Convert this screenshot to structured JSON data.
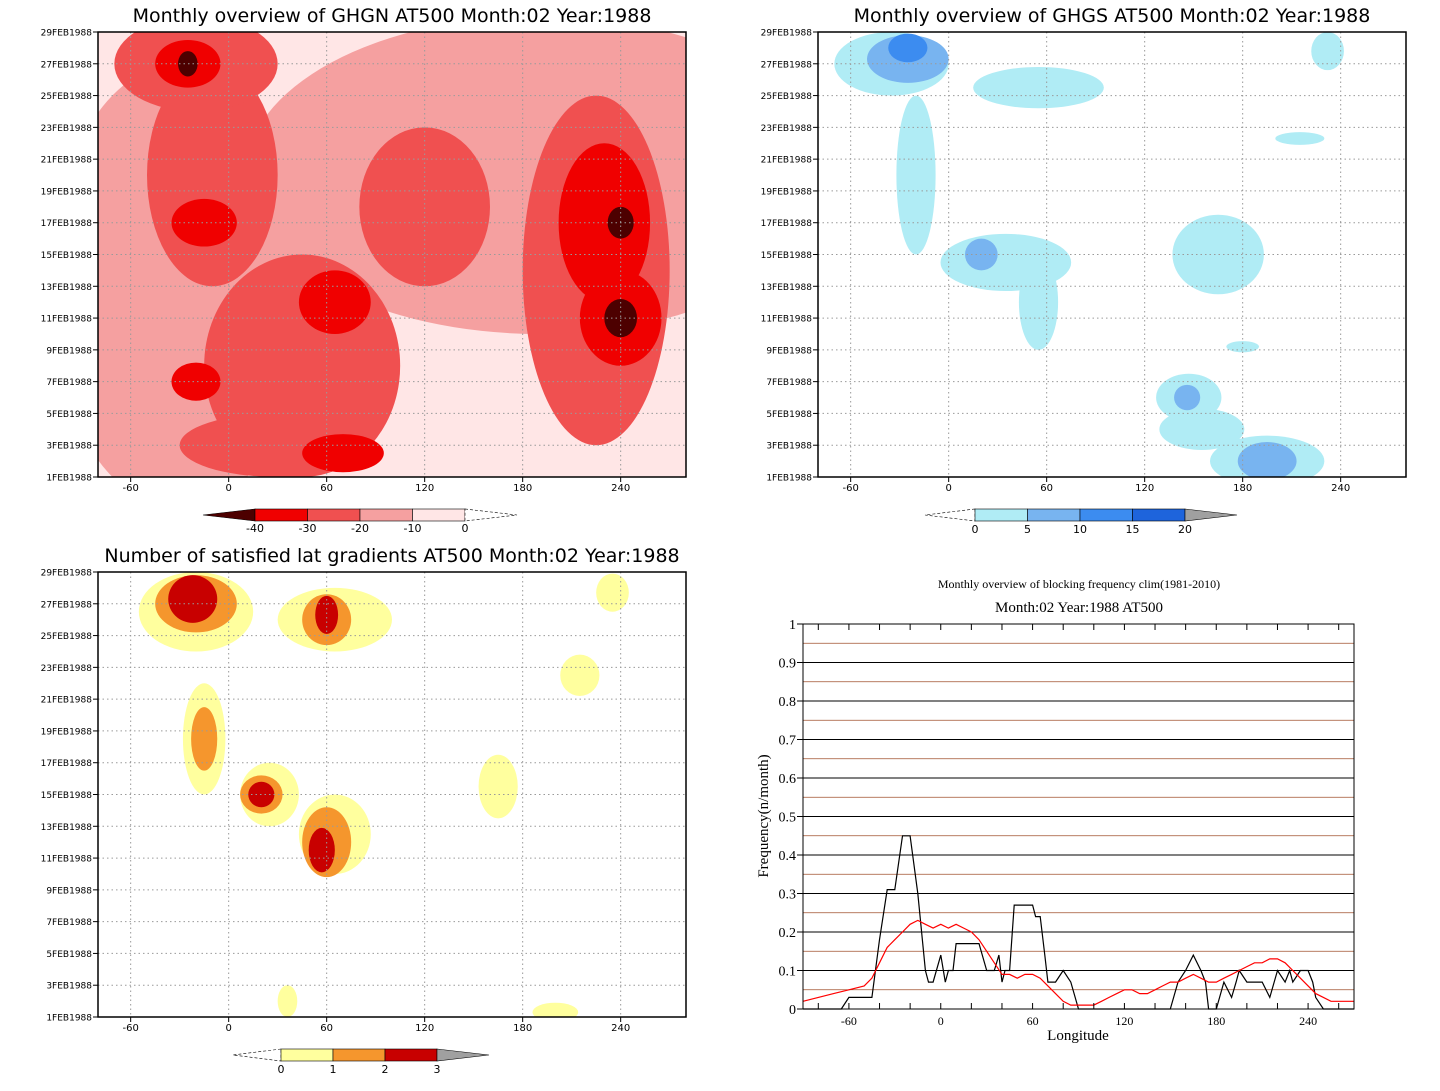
{
  "chart_data": [
    {
      "type": "heatmap",
      "title": "Monthly overview of GHGN AT500 Month:02 Year:1988",
      "x_ticks": [
        "-60",
        "0",
        "60",
        "120",
        "180",
        "240"
      ],
      "y_ticks": [
        "1FEB1988",
        "3FEB1988",
        "5FEB1988",
        "7FEB1988",
        "9FEB1988",
        "11FEB1988",
        "13FEB1988",
        "15FEB1988",
        "17FEB1988",
        "19FEB1988",
        "21FEB1988",
        "23FEB1988",
        "25FEB1988",
        "27FEB1988",
        "29FEB1988"
      ],
      "xlim": [
        -80,
        280
      ],
      "ylim": [
        1,
        29
      ],
      "colorbar": {
        "labels": [
          "-40",
          "-30",
          "-20",
          "-10",
          "0"
        ],
        "colors": [
          "#4d0000",
          "#f00000",
          "#f05050",
          "#f5a0a0",
          "#ffe6e6"
        ]
      },
      "grid": true,
      "blobs": [
        {
          "level": 1,
          "lon": 190,
          "day": 20,
          "rx": 180,
          "ry": 10
        },
        {
          "level": 1,
          "lon": -30,
          "day": 13,
          "rx": 80,
          "ry": 14
        },
        {
          "level": 2,
          "lon": 225,
          "day": 14,
          "rx": 45,
          "ry": 11
        },
        {
          "level": 2,
          "lon": 45,
          "day": 8,
          "rx": 60,
          "ry": 7
        },
        {
          "level": 2,
          "lon": -10,
          "day": 20,
          "rx": 40,
          "ry": 7
        },
        {
          "level": 2,
          "lon": -20,
          "day": 27,
          "rx": 50,
          "ry": 3
        },
        {
          "level": 2,
          "lon": 120,
          "day": 18,
          "rx": 40,
          "ry": 5
        },
        {
          "level": 2,
          "lon": 30,
          "day": 3,
          "rx": 60,
          "ry": 2
        },
        {
          "level": 3,
          "lon": 230,
          "day": 17,
          "rx": 28,
          "ry": 5
        },
        {
          "level": 3,
          "lon": 240,
          "day": 11,
          "rx": 25,
          "ry": 3
        },
        {
          "level": 3,
          "lon": -25,
          "day": 27,
          "rx": 20,
          "ry": 1.5
        },
        {
          "level": 3,
          "lon": 65,
          "day": 12,
          "rx": 22,
          "ry": 2
        },
        {
          "level": 3,
          "lon": -15,
          "day": 17,
          "rx": 20,
          "ry": 1.5
        },
        {
          "level": 3,
          "lon": -20,
          "day": 7,
          "rx": 15,
          "ry": 1.2
        },
        {
          "level": 3,
          "lon": 70,
          "day": 2.5,
          "rx": 25,
          "ry": 1.2
        },
        {
          "level": 4,
          "lon": 240,
          "day": 17,
          "rx": 8,
          "ry": 1
        },
        {
          "level": 4,
          "lon": 240,
          "day": 11,
          "rx": 10,
          "ry": 1.2
        },
        {
          "level": 4,
          "lon": -25,
          "day": 27,
          "rx": 6,
          "ry": 0.8
        }
      ]
    },
    {
      "type": "heatmap",
      "title": "Monthly overview of GHGS AT500 Month:02 Year:1988",
      "x_ticks": [
        "-60",
        "0",
        "60",
        "120",
        "180",
        "240"
      ],
      "y_ticks": [
        "1FEB1988",
        "3FEB1988",
        "5FEB1988",
        "7FEB1988",
        "9FEB1988",
        "11FEB1988",
        "13FEB1988",
        "15FEB1988",
        "17FEB1988",
        "19FEB1988",
        "21FEB1988",
        "23FEB1988",
        "25FEB1988",
        "27FEB1988",
        "29FEB1988"
      ],
      "xlim": [
        -80,
        280
      ],
      "ylim": [
        1,
        29
      ],
      "colorbar": {
        "labels": [
          "0",
          "5",
          "10",
          "15",
          "20"
        ],
        "colors": [
          "#b0ecf5",
          "#78b4f0",
          "#3c8cf0",
          "#1e64dc",
          "#a0a0a0"
        ]
      },
      "grid": true,
      "blobs": [
        {
          "level": 1,
          "lon": -35,
          "day": 27,
          "rx": 35,
          "ry": 2
        },
        {
          "level": 1,
          "lon": -20,
          "day": 20,
          "rx": 12,
          "ry": 5
        },
        {
          "level": 1,
          "lon": 55,
          "day": 25.5,
          "rx": 40,
          "ry": 1.3
        },
        {
          "level": 1,
          "lon": 35,
          "day": 14.5,
          "rx": 40,
          "ry": 1.8
        },
        {
          "level": 1,
          "lon": 55,
          "day": 12,
          "rx": 12,
          "ry": 3
        },
        {
          "level": 1,
          "lon": 165,
          "day": 15,
          "rx": 28,
          "ry": 2.5
        },
        {
          "level": 1,
          "lon": 147,
          "day": 6,
          "rx": 20,
          "ry": 1.5
        },
        {
          "level": 1,
          "lon": 155,
          "day": 4,
          "rx": 26,
          "ry": 1.3
        },
        {
          "level": 1,
          "lon": 195,
          "day": 2,
          "rx": 35,
          "ry": 1.6
        },
        {
          "level": 1,
          "lon": 232,
          "day": 27.8,
          "rx": 10,
          "ry": 1.2
        },
        {
          "level": 1,
          "lon": 215,
          "day": 22.3,
          "rx": 15,
          "ry": 0.4
        },
        {
          "level": 1,
          "lon": 180,
          "day": 9.2,
          "rx": 10,
          "ry": 0.35
        },
        {
          "level": 2,
          "lon": -25,
          "day": 27.3,
          "rx": 25,
          "ry": 1.5
        },
        {
          "level": 2,
          "lon": 20,
          "day": 15,
          "rx": 10,
          "ry": 1
        },
        {
          "level": 2,
          "lon": 146,
          "day": 6,
          "rx": 8,
          "ry": 0.8
        },
        {
          "level": 2,
          "lon": 195,
          "day": 2,
          "rx": 18,
          "ry": 1.2
        },
        {
          "level": 3,
          "lon": -25,
          "day": 28,
          "rx": 12,
          "ry": 0.9
        }
      ]
    },
    {
      "type": "heatmap",
      "title": "Number of satisfied lat gradients AT500 Month:02 Year:1988",
      "x_ticks": [
        "-60",
        "0",
        "60",
        "120",
        "180",
        "240"
      ],
      "y_ticks": [
        "1FEB1988",
        "3FEB1988",
        "5FEB1988",
        "7FEB1988",
        "9FEB1988",
        "11FEB1988",
        "13FEB1988",
        "15FEB1988",
        "17FEB1988",
        "19FEB1988",
        "21FEB1988",
        "23FEB1988",
        "25FEB1988",
        "27FEB1988",
        "29FEB1988"
      ],
      "xlim": [
        -80,
        280
      ],
      "ylim": [
        1,
        29
      ],
      "colorbar": {
        "labels": [
          "0",
          "1",
          "2",
          "3"
        ],
        "colors": [
          "#ffff9e",
          "#f5962d",
          "#c80000",
          "#a0a0a0"
        ]
      },
      "grid": true,
      "blobs": [
        {
          "level": 1,
          "lon": -20,
          "day": 26.5,
          "rx": 35,
          "ry": 2.5
        },
        {
          "level": 1,
          "lon": -15,
          "day": 18.5,
          "rx": 13,
          "ry": 3.5
        },
        {
          "level": 1,
          "lon": 65,
          "day": 26,
          "rx": 35,
          "ry": 2
        },
        {
          "level": 1,
          "lon": 25,
          "day": 15,
          "rx": 18,
          "ry": 2
        },
        {
          "level": 1,
          "lon": 65,
          "day": 12.5,
          "rx": 22,
          "ry": 2.5
        },
        {
          "level": 1,
          "lon": 165,
          "day": 15.5,
          "rx": 12,
          "ry": 2
        },
        {
          "level": 1,
          "lon": 215,
          "day": 22.5,
          "rx": 12,
          "ry": 1.3
        },
        {
          "level": 1,
          "lon": 235,
          "day": 27.7,
          "rx": 10,
          "ry": 1.2
        },
        {
          "level": 1,
          "lon": 36,
          "day": 2,
          "rx": 6,
          "ry": 1
        },
        {
          "level": 1,
          "lon": 200,
          "day": 1.3,
          "rx": 14,
          "ry": 0.6
        },
        {
          "level": 2,
          "lon": -20,
          "day": 27,
          "rx": 25,
          "ry": 1.8
        },
        {
          "level": 2,
          "lon": -15,
          "day": 18.5,
          "rx": 8,
          "ry": 2
        },
        {
          "level": 2,
          "lon": 60,
          "day": 26,
          "rx": 15,
          "ry": 1.6
        },
        {
          "level": 2,
          "lon": 20,
          "day": 15,
          "rx": 13,
          "ry": 1.2
        },
        {
          "level": 2,
          "lon": 60,
          "day": 12,
          "rx": 15,
          "ry": 2.2
        },
        {
          "level": 3,
          "lon": -22,
          "day": 27.3,
          "rx": 15,
          "ry": 1.5
        },
        {
          "level": 3,
          "lon": 60,
          "day": 26.3,
          "rx": 7,
          "ry": 1.2
        },
        {
          "level": 3,
          "lon": 20,
          "day": 15,
          "rx": 8,
          "ry": 0.8
        },
        {
          "level": 3,
          "lon": 57,
          "day": 11.5,
          "rx": 8,
          "ry": 1.4
        }
      ]
    },
    {
      "type": "line",
      "title": "Monthly overview of blocking frequency clim(1981-2010)",
      "subtitle": "Month:02 Year:1988  AT500",
      "xlabel": "Longitude",
      "ylabel": "Frequency(n/month)",
      "xlim": [
        -90,
        270
      ],
      "ylim": [
        0,
        1
      ],
      "x_ticks": [
        "-60",
        "0",
        "60",
        "120",
        "180",
        "240"
      ],
      "y_ticks": [
        "0",
        "0.1",
        "0.2",
        "0.3",
        "0.4",
        "0.5",
        "0.6",
        "0.7",
        "0.8",
        "0.9",
        "1"
      ],
      "grid": true,
      "series": [
        {
          "color": "#000000",
          "x": [
            -90,
            -65,
            -60,
            -55,
            -45,
            -40,
            -35,
            -30,
            -25,
            -20,
            -15,
            -10,
            -8,
            -5,
            0,
            3,
            5,
            8,
            10,
            15,
            20,
            25,
            30,
            35,
            38,
            40,
            42,
            45,
            48,
            50,
            55,
            60,
            62,
            65,
            68,
            70,
            72,
            75,
            80,
            85,
            90,
            100,
            110,
            120,
            130,
            140,
            150,
            155,
            160,
            165,
            170,
            173,
            175,
            180,
            185,
            190,
            193,
            195,
            200,
            205,
            210,
            215,
            220,
            225,
            228,
            230,
            235,
            240,
            243,
            245,
            250,
            255,
            260,
            270
          ],
          "y": [
            0,
            0,
            0.03,
            0.03,
            0.03,
            0.18,
            0.31,
            0.31,
            0.45,
            0.45,
            0.3,
            0.1,
            0.07,
            0.07,
            0.14,
            0.07,
            0.1,
            0.1,
            0.17,
            0.17,
            0.17,
            0.17,
            0.1,
            0.1,
            0.14,
            0.07,
            0.1,
            0.1,
            0.27,
            0.27,
            0.27,
            0.27,
            0.24,
            0.24,
            0.14,
            0.07,
            0.07,
            0.07,
            0.1,
            0.07,
            0,
            0,
            0,
            0,
            0,
            0,
            0,
            0.07,
            0.1,
            0.14,
            0.1,
            0.07,
            0,
            0,
            0.07,
            0.03,
            0.07,
            0.1,
            0.07,
            0.07,
            0.07,
            0.03,
            0.1,
            0.07,
            0.1,
            0.07,
            0.1,
            0.1,
            0.07,
            0.03,
            0,
            0,
            0,
            0
          ]
        },
        {
          "color": "#ff0000",
          "x": [
            -90,
            -80,
            -70,
            -60,
            -50,
            -45,
            -40,
            -35,
            -30,
            -25,
            -20,
            -15,
            -10,
            -5,
            0,
            5,
            10,
            15,
            20,
            25,
            30,
            35,
            40,
            45,
            50,
            55,
            60,
            65,
            70,
            75,
            80,
            85,
            90,
            95,
            100,
            105,
            110,
            115,
            120,
            125,
            130,
            135,
            140,
            145,
            150,
            155,
            160,
            165,
            170,
            175,
            180,
            185,
            190,
            195,
            200,
            205,
            210,
            215,
            220,
            225,
            230,
            235,
            240,
            245,
            250,
            255,
            260,
            265,
            270
          ],
          "y": [
            0.02,
            0.03,
            0.04,
            0.05,
            0.06,
            0.08,
            0.12,
            0.16,
            0.18,
            0.2,
            0.22,
            0.23,
            0.22,
            0.21,
            0.22,
            0.21,
            0.22,
            0.21,
            0.2,
            0.18,
            0.15,
            0.12,
            0.09,
            0.09,
            0.08,
            0.09,
            0.09,
            0.08,
            0.06,
            0.04,
            0.02,
            0.01,
            0.01,
            0.01,
            0.01,
            0.02,
            0.03,
            0.04,
            0.05,
            0.05,
            0.04,
            0.04,
            0.05,
            0.06,
            0.07,
            0.07,
            0.08,
            0.09,
            0.08,
            0.07,
            0.07,
            0.08,
            0.09,
            0.1,
            0.11,
            0.12,
            0.12,
            0.13,
            0.13,
            0.12,
            0.1,
            0.08,
            0.06,
            0.04,
            0.03,
            0.02,
            0.02,
            0.02,
            0.02
          ]
        }
      ]
    }
  ]
}
